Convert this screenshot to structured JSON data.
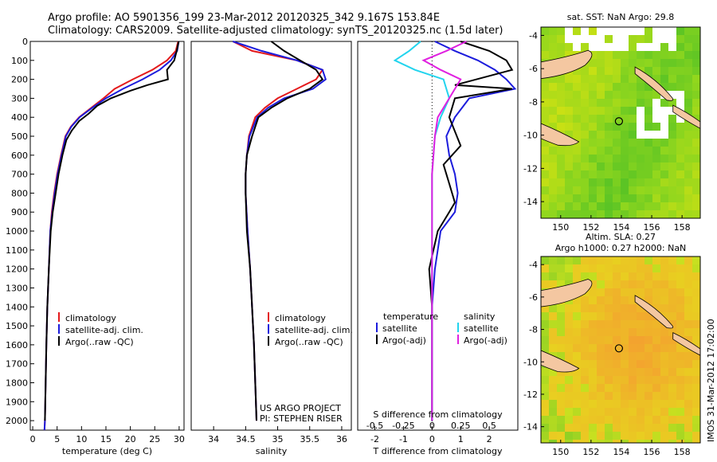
{
  "header": {
    "line1": "Argo profile: AO 5901356_199 23-Mar-2012 20120325_342 9.167S 153.84E",
    "line2": "Climatology: CARS2009. Satellite-adjusted climatology: synTS_20120325.nc (1.5d later)"
  },
  "side_label": "IMOS 31-Mar-2012 17:02:00",
  "project": {
    "line1": "US ARGO PROJECT",
    "line2": "PI: STEPHEN RISER"
  },
  "colors": {
    "climatology": "#e41a1c",
    "satellite": "#1c1cdc",
    "argo": "#000000",
    "cyan": "#22d4ee",
    "magenta": "#e020e0"
  },
  "chart_data": [
    {
      "id": "temperature",
      "type": "line",
      "xlabel": "temperature (deg C)",
      "ylabel": "",
      "xlim": [
        -0.5,
        31
      ],
      "ylim": [
        0,
        2050
      ],
      "y_inverted": true,
      "xticks": [
        0,
        5,
        10,
        15,
        20,
        25,
        30
      ],
      "yticks": [
        0,
        100,
        200,
        300,
        400,
        500,
        600,
        700,
        800,
        900,
        1000,
        1100,
        1200,
        1300,
        1400,
        1500,
        1600,
        1700,
        1800,
        1900,
        2000
      ],
      "legend": [
        "climatology",
        "satellite-adj. clim.",
        "Argo(..raw -QC)"
      ],
      "series": [
        {
          "name": "climatology",
          "color": "#e41a1c",
          "x": [
            29.8,
            29.3,
            27.5,
            24.5,
            20.5,
            16.8,
            14.5,
            12.0,
            9.5,
            7.8,
            6.7,
            5.8,
            5.0,
            4.4,
            3.9,
            3.6,
            3.3,
            3.0,
            2.8,
            2.65,
            2.5,
            2.4
          ],
          "y": [
            0,
            50,
            100,
            150,
            200,
            250,
            300,
            350,
            400,
            450,
            500,
            600,
            700,
            800,
            900,
            1000,
            1200,
            1400,
            1600,
            1800,
            2000,
            2050
          ]
        },
        {
          "name": "satellite-adj. clim.",
          "color": "#1c1cdc",
          "x": [
            29.9,
            29.6,
            28.3,
            26.0,
            22.5,
            18.5,
            15.0,
            12.2,
            9.6,
            7.9,
            6.8,
            5.9,
            5.1,
            4.5,
            4.0,
            3.6,
            3.3,
            3.0,
            2.8,
            2.65,
            2.5,
            2.4
          ],
          "y": [
            0,
            50,
            100,
            150,
            200,
            250,
            300,
            350,
            400,
            450,
            500,
            600,
            700,
            800,
            900,
            1000,
            1200,
            1400,
            1600,
            1800,
            2000,
            2050
          ]
        },
        {
          "name": "Argo(..raw -QC)",
          "color": "#000000",
          "x": [
            29.9,
            29.5,
            29.0,
            27.5,
            27.7,
            23.5,
            20.0,
            16.0,
            13.2,
            11.5,
            9.5,
            8.0,
            6.9,
            6.1,
            5.3,
            4.7,
            4.1,
            3.7,
            3.3,
            3.0,
            2.8,
            2.65,
            2.5
          ],
          "y": [
            0,
            50,
            100,
            150,
            200,
            230,
            260,
            300,
            340,
            380,
            420,
            470,
            520,
            600,
            700,
            800,
            900,
            1000,
            1200,
            1400,
            1600,
            1800,
            2000
          ]
        }
      ]
    },
    {
      "id": "salinity",
      "type": "line",
      "xlabel": "salinity",
      "ylabel": "",
      "xlim": [
        33.65,
        36.15
      ],
      "ylim": [
        0,
        2050
      ],
      "y_inverted": true,
      "xticks": [
        34,
        34.5,
        35,
        35.5,
        36
      ],
      "legend": [
        "climatology",
        "satellite-adj. clim.",
        "Argo(..raw -QC)"
      ],
      "series": [
        {
          "name": "climatology",
          "color": "#e41a1c",
          "x": [
            34.3,
            34.6,
            35.3,
            35.7,
            35.6,
            35.3,
            35.0,
            34.8,
            34.65,
            34.55,
            34.52,
            34.5,
            34.5,
            34.53,
            34.57,
            34.6,
            34.63,
            34.65,
            34.67
          ],
          "y": [
            0,
            50,
            100,
            150,
            200,
            250,
            300,
            350,
            400,
            500,
            600,
            700,
            800,
            1000,
            1200,
            1400,
            1600,
            1800,
            2000
          ]
        },
        {
          "name": "satellite-adj. clim.",
          "color": "#1c1cdc",
          "x": [
            34.3,
            34.75,
            35.3,
            35.7,
            35.75,
            35.55,
            35.1,
            34.85,
            34.68,
            34.56,
            34.52,
            34.5,
            34.5,
            34.53,
            34.57,
            34.6,
            34.63,
            34.65,
            34.67
          ],
          "y": [
            0,
            50,
            100,
            150,
            200,
            250,
            300,
            350,
            400,
            500,
            600,
            700,
            800,
            1000,
            1200,
            1400,
            1600,
            1800,
            2000
          ]
        },
        {
          "name": "Argo(..raw -QC)",
          "color": "#000000",
          "x": [
            34.9,
            35.1,
            35.35,
            35.6,
            35.7,
            35.5,
            35.15,
            34.9,
            34.7,
            34.6,
            34.52,
            34.5,
            34.5,
            34.52,
            34.57,
            34.6,
            34.63,
            34.65,
            34.67
          ],
          "y": [
            0,
            50,
            100,
            150,
            200,
            250,
            300,
            350,
            400,
            500,
            600,
            700,
            800,
            1000,
            1200,
            1400,
            1600,
            1800,
            2000
          ]
        }
      ]
    },
    {
      "id": "difference",
      "type": "line",
      "xlabel": "T difference from climatology",
      "xlabel_top": "S difference from climatology",
      "xlim": [
        -2.6,
        3.0
      ],
      "ylim": [
        0,
        2050
      ],
      "y_inverted": true,
      "xticks": [
        -2,
        -1,
        0,
        1,
        2
      ],
      "xticks_s": [
        "-0.5",
        "-0.25",
        "0",
        "0.25",
        "0.5"
      ],
      "xticks_s_pos": [
        -2,
        -1,
        0,
        1,
        2
      ],
      "legend_left_title": "temperature",
      "legend_right_title": "salinity",
      "legend": [
        "satellite",
        "Argo(-adj)",
        "satellite",
        "Argo(-adj)"
      ],
      "series": [
        {
          "name": "T satellite",
          "color": "#1c1cdc",
          "x": [
            0.1,
            0.8,
            1.6,
            2.2,
            2.6,
            2.9,
            1.3,
            0.8,
            0.5,
            0.6,
            0.8,
            0.9,
            0.8,
            0.3,
            0.1,
            0.0,
            0.0,
            0.0
          ],
          "y": [
            0,
            50,
            100,
            150,
            200,
            250,
            300,
            400,
            500,
            600,
            700,
            800,
            900,
            1000,
            1200,
            1400,
            1700,
            2000
          ]
        },
        {
          "name": "T Argo(-adj)",
          "color": "#000000",
          "x": [
            1.0,
            2.0,
            2.6,
            2.8,
            0.8,
            2.8,
            0.8,
            0.6,
            1.0,
            0.4,
            0.6,
            0.8,
            0.6,
            0.2,
            -0.1,
            0.0,
            0.0,
            0.0
          ],
          "y": [
            0,
            50,
            100,
            150,
            230,
            250,
            300,
            400,
            550,
            650,
            750,
            850,
            900,
            1000,
            1200,
            1400,
            1700,
            2000
          ]
        },
        {
          "name": "S satellite",
          "color": "#22d4ee",
          "x": [
            -0.4,
            -0.8,
            -1.3,
            -0.6,
            0.4,
            0.6,
            0.3,
            0.1,
            0.0,
            0.0,
            0.0,
            0.0
          ],
          "y": [
            0,
            50,
            100,
            150,
            200,
            300,
            400,
            500,
            700,
            1000,
            1500,
            2000
          ]
        },
        {
          "name": "S Argo(-adj)",
          "color": "#e020e0",
          "x": [
            1.2,
            0.5,
            -0.3,
            0.3,
            1.0,
            0.6,
            0.2,
            0.1,
            0.0,
            0.0,
            0.0,
            0.0
          ],
          "y": [
            0,
            50,
            100,
            150,
            200,
            300,
            400,
            500,
            700,
            1000,
            1500,
            2000
          ]
        }
      ]
    },
    {
      "id": "sst_map",
      "type": "heatmap",
      "title": "sat. SST: NaN Argo: 29.8",
      "xlim": [
        148.7,
        159.2
      ],
      "ylim": [
        -15,
        -3.5
      ],
      "xticks": [
        150,
        152,
        154,
        156,
        158
      ],
      "yticks": [
        -4,
        -6,
        -8,
        -10,
        -12,
        -14
      ],
      "marker": {
        "lon": 153.84,
        "lat": -9.167
      }
    },
    {
      "id": "sla_map",
      "type": "heatmap",
      "title": "Altim. SLA: 0.27",
      "subtitle": "Argo h1000: 0.27 h2000: NaN",
      "xlim": [
        148.7,
        159.2
      ],
      "ylim": [
        -15,
        -3.5
      ],
      "xticks": [
        150,
        152,
        154,
        156,
        158
      ],
      "yticks": [
        -4,
        -6,
        -8,
        -10,
        -12,
        -14
      ],
      "marker": {
        "lon": 153.84,
        "lat": -9.167
      }
    }
  ]
}
